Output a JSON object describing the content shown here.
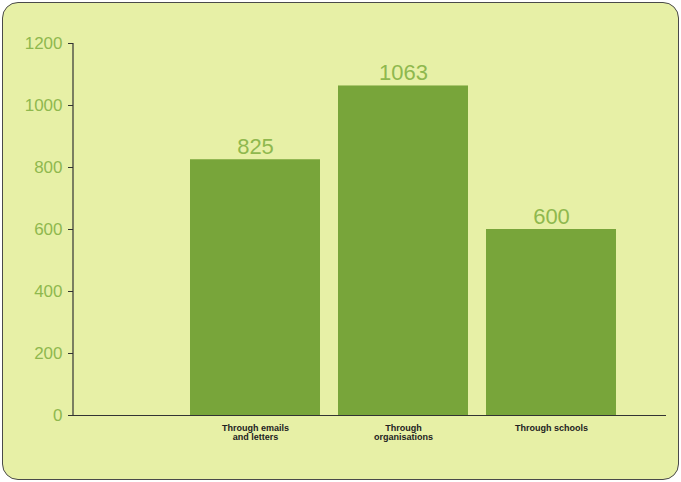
{
  "chart_data": {
    "type": "bar",
    "categories": [
      "Through emails and letters",
      "Through organisations",
      "Through schools"
    ],
    "values": [
      825,
      1063,
      600
    ],
    "color": "#78a53a",
    "ylim": [
      0,
      1200
    ],
    "yticks": [
      0,
      200,
      400,
      600,
      800,
      1000,
      1200
    ],
    "grid": false,
    "data_labels": true
  }
}
